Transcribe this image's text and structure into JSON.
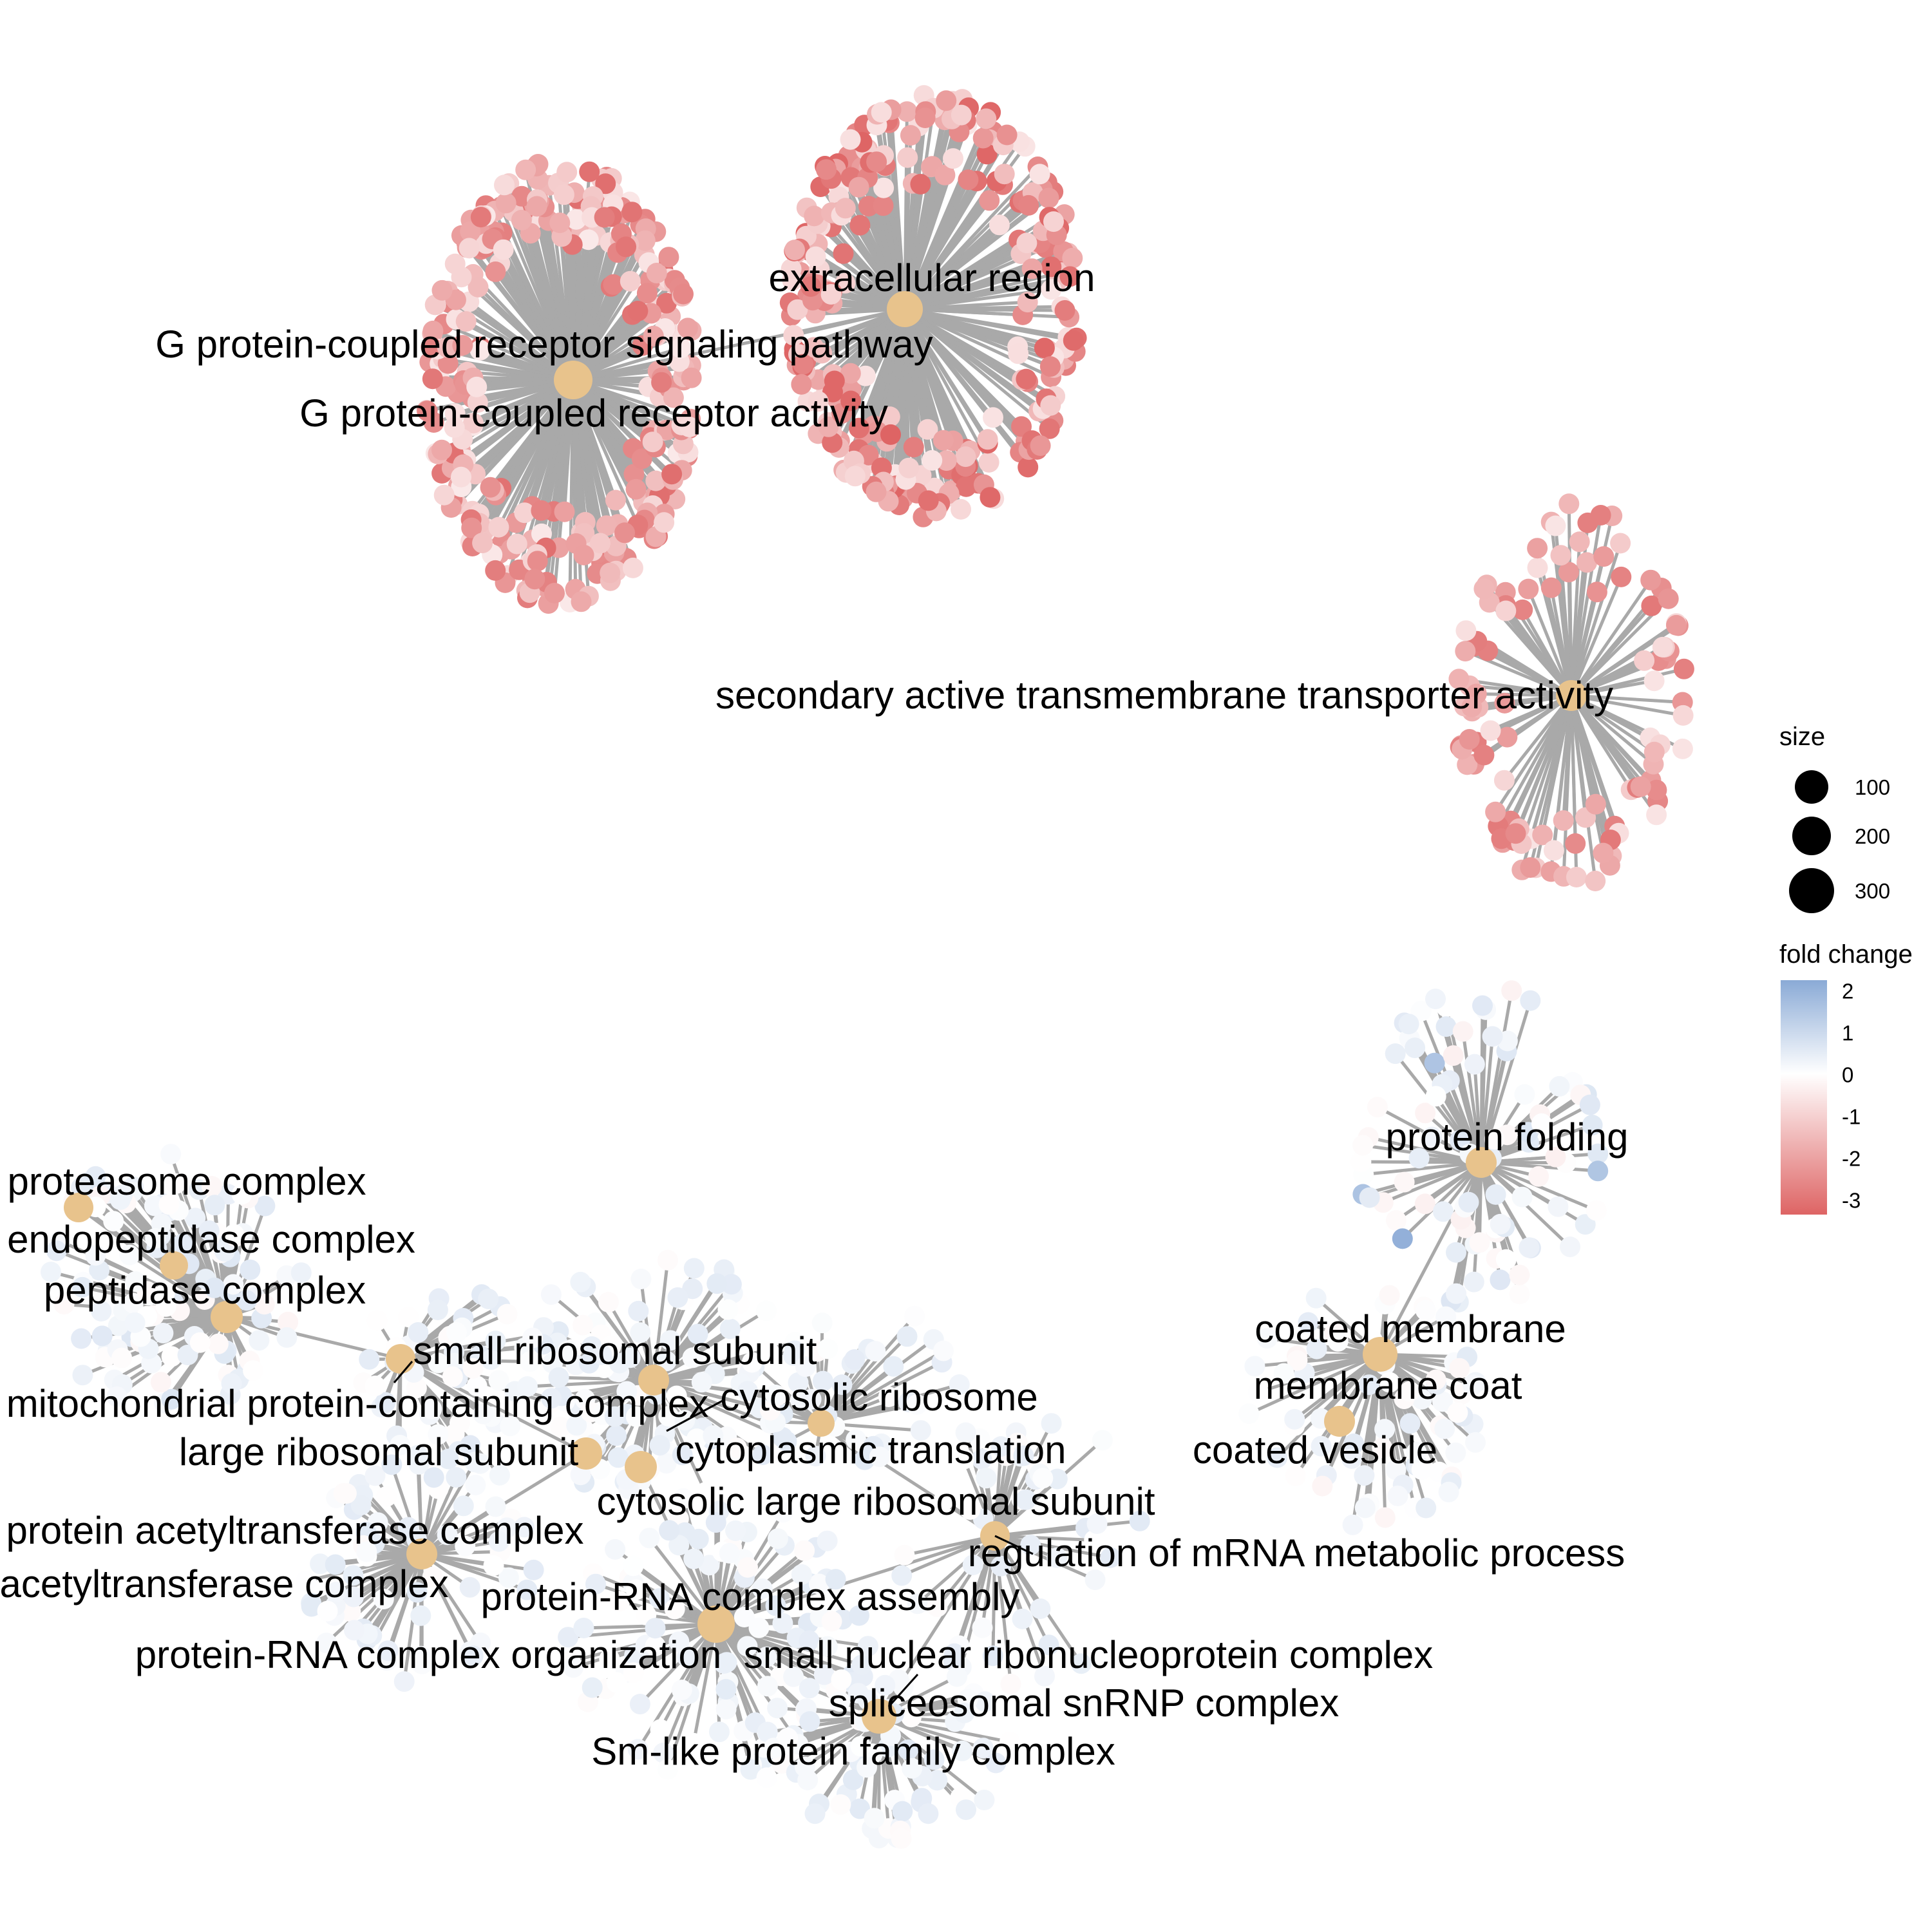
{
  "legend": {
    "size_title": "size",
    "size_breaks": [
      "100",
      "200",
      "300"
    ],
    "color_title": "fold change",
    "color_ticks": [
      "2",
      "1",
      "0",
      "-1",
      "-2",
      "-3"
    ],
    "color_low": "#de6464",
    "color_mid": "#ffffff",
    "color_high": "#8aaad6"
  },
  "colors": {
    "category_node": "#e8c38c",
    "edge": "#a9a9a9",
    "connector": "#000000"
  },
  "categories": [
    {
      "id": "gpcr_signaling",
      "label": "G protein-coupled receptor signaling pathway"
    },
    {
      "id": "gpcr_activity",
      "label": "G protein-coupled receptor activity"
    },
    {
      "id": "extracellular",
      "label": "extracellular region"
    },
    {
      "id": "secondary_transporter",
      "label": "secondary active transmembrane transporter activity"
    },
    {
      "id": "protein_folding",
      "label": "protein folding"
    },
    {
      "id": "coated_membrane",
      "label": "coated membrane"
    },
    {
      "id": "membrane_coat",
      "label": "membrane coat"
    },
    {
      "id": "coated_vesicle",
      "label": "coated vesicle"
    },
    {
      "id": "proteasome",
      "label": "proteasome complex"
    },
    {
      "id": "endopeptidase",
      "label": "endopeptidase complex"
    },
    {
      "id": "peptidase",
      "label": "peptidase complex"
    },
    {
      "id": "small_ribo",
      "label": "small ribosomal subunit"
    },
    {
      "id": "mito_complex",
      "label": "mitochondrial protein-containing complex"
    },
    {
      "id": "cytosolic_ribosome",
      "label": "cytosolic ribosome"
    },
    {
      "id": "large_ribo",
      "label": "large ribosomal subunit"
    },
    {
      "id": "cyto_translation",
      "label": "cytoplasmic translation"
    },
    {
      "id": "cyto_large_ribo",
      "label": "cytosolic large ribosomal subunit"
    },
    {
      "id": "prot_acetyl",
      "label": "protein acetyltransferase complex"
    },
    {
      "id": "acetyl",
      "label": "acetyltransferase complex"
    },
    {
      "id": "mrna_reg",
      "label": "regulation of mRNA metabolic process"
    },
    {
      "id": "rna_assembly",
      "label": "protein-RNA complex assembly"
    },
    {
      "id": "rna_org",
      "label": "protein-RNA complex organization"
    },
    {
      "id": "snrnp",
      "label": "small nuclear ribonucleoprotein complex"
    },
    {
      "id": "spliceosomal",
      "label": "spliceosomal snRNP complex"
    },
    {
      "id": "smlike",
      "label": "Sm-like protein family complex"
    }
  ]
}
